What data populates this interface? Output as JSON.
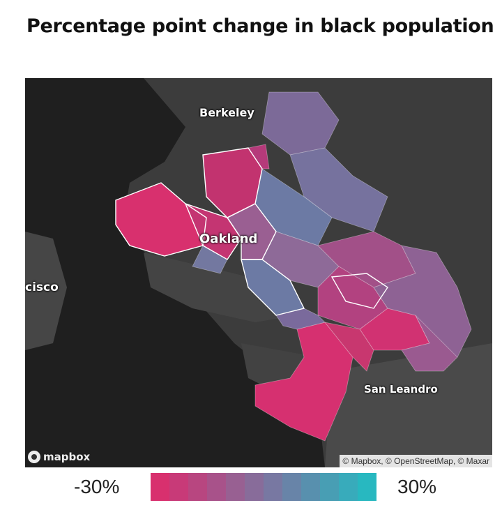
{
  "title": "Percentage point change in black population",
  "map": {
    "labels": {
      "berkeley": "Berkeley",
      "oakland": "Oakland",
      "san_francisco_partial": "cisco",
      "san_leandro": "San Leandro"
    },
    "provider_logo": "mapbox",
    "attribution": "© Mapbox, © OpenStreetMap, © Maxar",
    "colors": {
      "water": "#1f1f1f",
      "land": "#3c3c3c",
      "tract_outline": "#ffffff"
    }
  },
  "legend": {
    "min_label": "-30%",
    "max_label": "30%",
    "min_value": -30,
    "max_value": 30,
    "colors": [
      "#d8306e",
      "#c83a78",
      "#b84680",
      "#a8528a",
      "#986092",
      "#886c9a",
      "#7878a2",
      "#6884a8",
      "#5890ae",
      "#489eb4",
      "#38abbb",
      "#28b8c0"
    ]
  }
}
